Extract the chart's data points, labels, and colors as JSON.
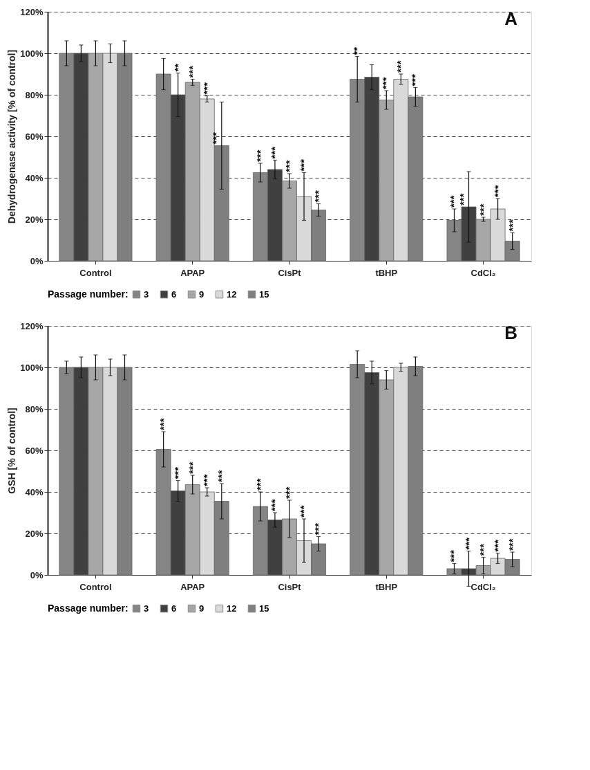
{
  "chart_data": [
    {
      "type": "bar",
      "title": "A",
      "ylabel": "Dehydrogenase activity  [% of control]",
      "legend_title": "Passage number:",
      "legend": "bottom",
      "grid": "y",
      "categories": [
        "Control",
        "APAP",
        "CisPt",
        "tBHP",
        "CdCl₂"
      ],
      "ylim": [
        0,
        120
      ],
      "yticks": [
        {
          "value": 0,
          "label": "0%"
        },
        {
          "value": 20,
          "label": "20%"
        },
        {
          "value": 40,
          "label": "40%"
        },
        {
          "value": 60,
          "label": "60%"
        },
        {
          "value": 80,
          "label": "80%"
        },
        {
          "value": 100,
          "label": "100%"
        },
        {
          "value": 120,
          "label": "120%"
        }
      ],
      "series": [
        {
          "name": "3",
          "color": "#858585",
          "values": [
            100,
            90,
            42.5,
            87.5,
            19.5
          ],
          "errors": [
            6,
            7.5,
            4.5,
            11,
            5.5
          ],
          "value_labels": [
            null,
            null,
            "***",
            "**",
            "***"
          ]
        },
        {
          "name": "6",
          "color": "#404040",
          "values": [
            100,
            80,
            44,
            88.5,
            26
          ],
          "errors": [
            4,
            10.5,
            4.5,
            6,
            17
          ],
          "value_labels": [
            null,
            "**",
            "***",
            null,
            "***"
          ]
        },
        {
          "name": "9",
          "color": "#a6a6a6",
          "values": [
            100,
            86,
            38.5,
            77.5,
            20
          ],
          "errors": [
            6,
            1.5,
            3.5,
            4.5,
            1
          ],
          "value_labels": [
            null,
            "***",
            "***",
            "***",
            "***"
          ]
        },
        {
          "name": "12",
          "color": "#d9d9d9",
          "values": [
            100,
            78,
            31,
            87.5,
            25
          ],
          "errors": [
            4.5,
            1.5,
            11.5,
            2.5,
            5
          ],
          "value_labels": [
            null,
            "***",
            "***",
            "***",
            "***"
          ]
        },
        {
          "name": "15",
          "color": "#7f7f7f",
          "values": [
            100,
            55.5,
            24.5,
            79,
            9.5
          ],
          "errors": [
            6,
            21,
            3,
            4.5,
            4
          ],
          "value_labels": [
            null,
            "***",
            "***",
            "***",
            "***"
          ]
        }
      ]
    },
    {
      "type": "bar",
      "title": "B",
      "ylabel": "GSH [% of control]",
      "legend_title": "Passage number:",
      "legend": "bottom",
      "grid": "y",
      "categories": [
        "Control",
        "APAP",
        "CisPt",
        "tBHP",
        "CdCl₂"
      ],
      "ylim": [
        0,
        120
      ],
      "yticks": [
        {
          "value": 0,
          "label": "0%"
        },
        {
          "value": 20,
          "label": "20%"
        },
        {
          "value": 40,
          "label": "40%"
        },
        {
          "value": 60,
          "label": "60%"
        },
        {
          "value": 80,
          "label": "80%"
        },
        {
          "value": 100,
          "label": "100%"
        },
        {
          "value": 120,
          "label": "120%"
        }
      ],
      "series": [
        {
          "name": "3",
          "color": "#858585",
          "values": [
            100,
            60.5,
            33,
            101.5,
            3
          ],
          "errors": [
            3,
            8.5,
            7,
            6.5,
            2.5
          ],
          "value_labels": [
            null,
            "***",
            "***",
            null,
            "***"
          ]
        },
        {
          "name": "6",
          "color": "#404040",
          "values": [
            100,
            40.5,
            26.5,
            97.5,
            3
          ],
          "errors": [
            5,
            5,
            3.5,
            5.5,
            8.5
          ],
          "value_labels": [
            null,
            "***",
            "***",
            null,
            "***"
          ]
        },
        {
          "name": "9",
          "color": "#a6a6a6",
          "values": [
            100,
            43.5,
            27,
            94,
            4.5
          ],
          "errors": [
            6,
            4.5,
            9,
            4.5,
            4
          ],
          "value_labels": [
            null,
            "***",
            "***",
            null,
            "***"
          ]
        },
        {
          "name": "12",
          "color": "#d9d9d9",
          "values": [
            100,
            40,
            16.5,
            100,
            8
          ],
          "errors": [
            4,
            2,
            10.5,
            2,
            2.5
          ],
          "value_labels": [
            null,
            "***",
            "***",
            null,
            "***"
          ]
        },
        {
          "name": "15",
          "color": "#7f7f7f",
          "values": [
            100,
            35.5,
            15,
            100.5,
            7.5
          ],
          "errors": [
            6,
            8.5,
            3.5,
            4.5,
            3.5
          ],
          "value_labels": [
            null,
            "***",
            "***",
            null,
            "***"
          ]
        }
      ]
    }
  ]
}
